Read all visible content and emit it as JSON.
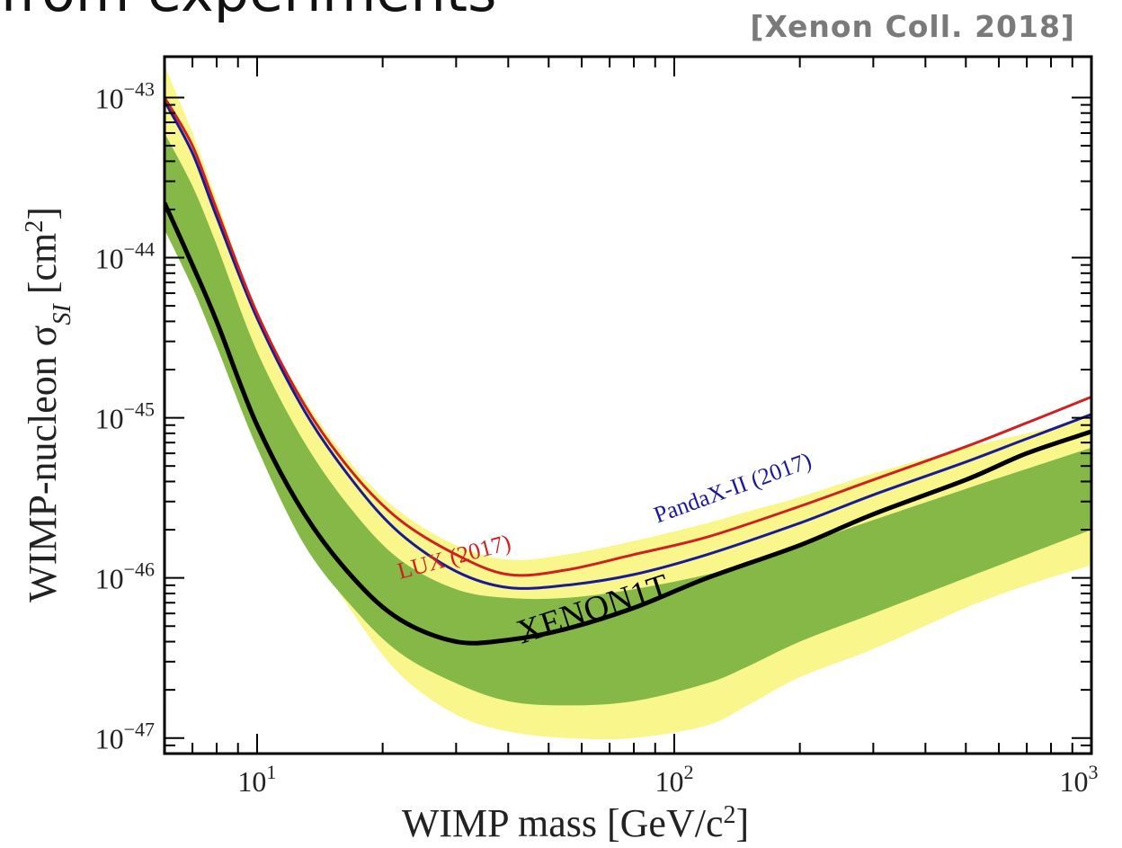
{
  "page": {
    "title_fragment": "from experiments",
    "citation": "[Xenon Coll. 2018]"
  },
  "colors": {
    "band_2sigma": "#f9f78b",
    "band_1sigma": "#86b847",
    "xenon1t": "#000000",
    "lux": "#cc2222",
    "pandax": "#1a1a99",
    "frame": "#000000"
  },
  "chart_data": {
    "type": "line",
    "xscale": "log",
    "yscale": "log",
    "xlim": [
      6,
      1000
    ],
    "ylim": [
      8e-48,
      1.8e-43
    ],
    "xlabel_pre": "WIMP mass [GeV/c",
    "xlabel_sup": "2",
    "xlabel_post": "]",
    "ylabel_pre": "WIMP-nucleon σ",
    "ylabel_sub": "SI",
    "ylabel_mid": " [cm",
    "ylabel_sup": "2",
    "ylabel_post": "]",
    "xticks": [
      {
        "value": 10,
        "base": "10",
        "exp": "1"
      },
      {
        "value": 100,
        "base": "10",
        "exp": "2"
      },
      {
        "value": 1000,
        "base": "10",
        "exp": "3"
      }
    ],
    "yticks": [
      {
        "value": 1e-43,
        "base": "10",
        "exp": "−43"
      },
      {
        "value": 1e-44,
        "base": "10",
        "exp": "−44"
      },
      {
        "value": 1e-45,
        "base": "10",
        "exp": "−45"
      },
      {
        "value": 1e-46,
        "base": "10",
        "exp": "−46"
      },
      {
        "value": 1e-47,
        "base": "10",
        "exp": "−47"
      }
    ],
    "band_2sigma": {
      "x": [
        6,
        7,
        8,
        10,
        13,
        17,
        22,
        30,
        40,
        55,
        80,
        120,
        150,
        200,
        300,
        500,
        700,
        1000
      ],
      "upper": [
        1.6e-43,
        6e-44,
        2.3e-44,
        4.5e-45,
        1.3e-45,
        5e-46,
        2.6e-46,
        1.6e-46,
        1.3e-46,
        1.4e-46,
        1.7e-46,
        2.2e-46,
        2.6e-46,
        3.2e-46,
        4.5e-46,
        6.5e-46,
        8e-46,
        1e-45
      ],
      "lower": [
        3e-44,
        1.2e-44,
        4.5e-45,
        9e-46,
        1.9e-46,
        6e-47,
        2.5e-47,
        1.4e-47,
        1.1e-47,
        1e-47,
        1e-47,
        1.2e-47,
        1.6e-47,
        2.4e-47,
        3.6e-47,
        6.5e-47,
        9e-47,
        1.2e-46
      ]
    },
    "band_1sigma": {
      "x": [
        6,
        7,
        8,
        10,
        13,
        17,
        22,
        30,
        40,
        55,
        80,
        120,
        150,
        200,
        300,
        500,
        700,
        1000
      ],
      "upper": [
        6e-44,
        2.8e-44,
        1.2e-44,
        2.6e-45,
        7e-46,
        2.6e-46,
        1.3e-46,
        8.5e-47,
        7.5e-47,
        7.5e-47,
        8.5e-47,
        1.05e-46,
        1.25e-46,
        1.6e-46,
        2.3e-46,
        3.6e-46,
        4.8e-46,
        6.5e-46
      ],
      "lower": [
        1.5e-44,
        6.5e-45,
        2.8e-45,
        6.5e-46,
        1.6e-46,
        6.5e-47,
        3.4e-47,
        2.2e-47,
        1.7e-47,
        1.6e-47,
        1.7e-47,
        2.2e-47,
        2.8e-47,
        4e-47,
        6e-47,
        1e-46,
        1.4e-46,
        2e-46
      ]
    },
    "series": [
      {
        "name": "XENON1T",
        "label_at": [
          65,
          5.5e-47
        ],
        "label_rotate": -18,
        "x": [
          6,
          7,
          8,
          10,
          13,
          17,
          22,
          30,
          40,
          55,
          80,
          120,
          200,
          300,
          500,
          700,
          1000
        ],
        "y": [
          2.2e-44,
          9e-45,
          4e-45,
          9e-46,
          2.5e-46,
          1e-46,
          5.5e-47,
          4e-47,
          4.1e-47,
          4.8e-47,
          6.5e-47,
          1e-46,
          1.6e-46,
          2.5e-46,
          4.1e-46,
          6e-46,
          8.2e-46
        ]
      },
      {
        "name": "LUX (2017)",
        "label_at": [
          30,
          1.22e-46
        ],
        "label_rotate": -15,
        "x": [
          6,
          7,
          8,
          10,
          13,
          17,
          22,
          30,
          40,
          55,
          80,
          120,
          200,
          300,
          500,
          700,
          1000
        ],
        "y": [
          1e-43,
          5e-44,
          2e-44,
          4.5e-45,
          1.2e-45,
          4.5e-46,
          2.3e-46,
          1.4e-46,
          1.05e-46,
          1.12e-46,
          1.4e-46,
          1.8e-46,
          2.8e-46,
          4.1e-46,
          6.6e-46,
          9.3e-46,
          1.35e-45
        ]
      },
      {
        "name": "PandaX-II (2017)",
        "label_at": [
          140,
          3.3e-46
        ],
        "label_rotate": -20,
        "x": [
          6,
          7,
          8,
          10,
          13,
          17,
          22,
          30,
          40,
          55,
          80,
          120,
          200,
          300,
          500,
          700,
          1000
        ],
        "y": [
          9.5e-44,
          4.5e-44,
          1.8e-44,
          4.2e-45,
          1.1e-45,
          4e-46,
          1.9e-46,
          1.1e-46,
          8.7e-47,
          9e-47,
          1.05e-46,
          1.4e-46,
          2.2e-46,
          3.3e-46,
          5.3e-46,
          7.4e-46,
          1.05e-45
        ]
      }
    ],
    "legend": "none",
    "grid": false
  }
}
